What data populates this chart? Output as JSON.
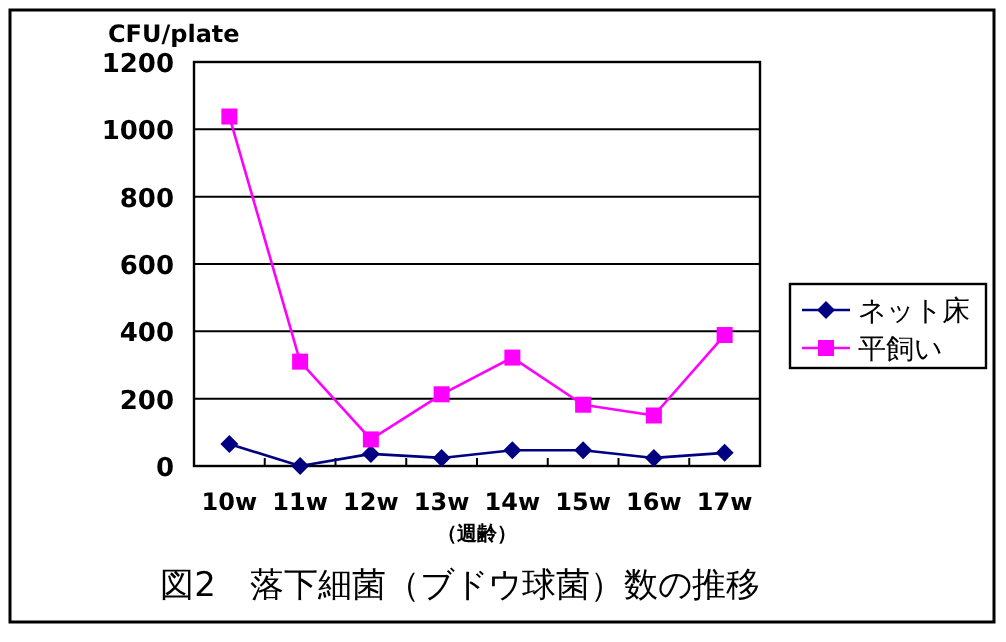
{
  "chart_data": {
    "type": "line",
    "title": "図2　落下細菌（ブドウ球菌）数の推移",
    "ylabel": "CFU/plate",
    "xlabel": "（週齢）",
    "categories": [
      "10w",
      "11w",
      "12w",
      "13w",
      "14w",
      "15w",
      "16w",
      "17w"
    ],
    "series": [
      {
        "name": "ネット床",
        "color": "#000080",
        "marker": "diamond",
        "values": [
          65,
          0,
          36,
          24,
          47,
          47,
          24,
          39
        ]
      },
      {
        "name": "平飼い",
        "color": "#ff00ff",
        "marker": "square",
        "values": [
          1038,
          310,
          79,
          213,
          322,
          182,
          150,
          389
        ]
      }
    ],
    "ylim": [
      0,
      1200
    ],
    "yticks": [
      0,
      200,
      400,
      600,
      800,
      1000,
      1200
    ],
    "grid": "y",
    "legend": "right"
  }
}
